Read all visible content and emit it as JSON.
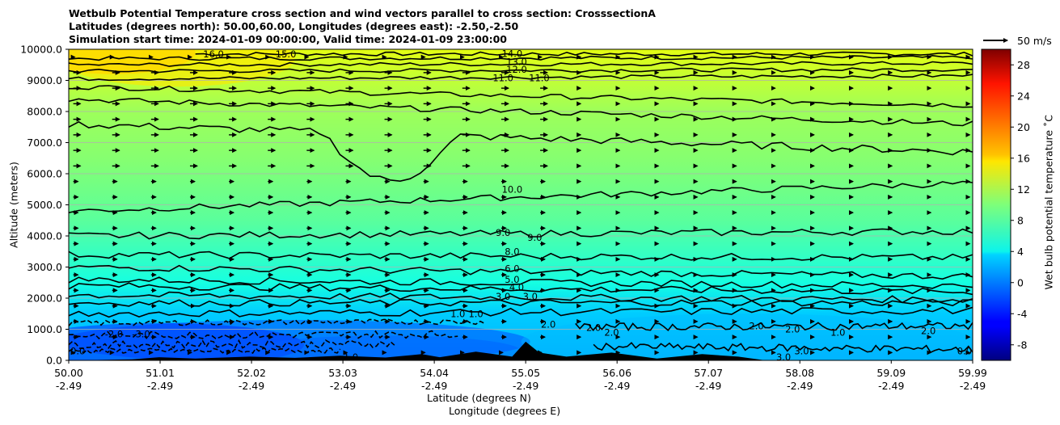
{
  "chart_data": {
    "type": "heatmap",
    "title_lines": [
      "Wetbulb Potential Temperature cross section and wind vectors parallel to cross section: CrosssectionA",
      "Latitudes (degrees north): 50.00,60.00, Longitudes (degrees east): -2.50,-2.50",
      "Simulation start time: 2024-01-09 00:00:00, Valid time: 2024-01-09 23:00:00"
    ],
    "xlabel_lat": "Latitude (degrees N)",
    "xlabel_lon": "Longitude (degrees E)",
    "ylabel": "Altitude (meters)",
    "colorbar_label": "Wet bulb potential temperature $^\\circ$C",
    "colorbar_label_display": "Wet bulb potential temperature ˚C",
    "vector_key_label": "50 m/s",
    "x_ticks_lat": [
      "50.00",
      "51.01",
      "52.02",
      "53.03",
      "54.04",
      "55.05",
      "56.06",
      "57.07",
      "58.08",
      "59.09",
      "59.99"
    ],
    "x_ticks_lon": [
      "-2.49",
      "-2.49",
      "-2.49",
      "-2.49",
      "-2.49",
      "-2.49",
      "-2.49",
      "-2.49",
      "-2.49",
      "-2.49",
      "-2.49"
    ],
    "x_tick_values": [
      50.0,
      51.01,
      52.02,
      53.03,
      54.04,
      55.05,
      56.06,
      57.07,
      58.08,
      59.09,
      59.99
    ],
    "xlim": [
      50.0,
      59.99
    ],
    "y_ticks": [
      "0.0",
      "1000.0",
      "2000.0",
      "3000.0",
      "4000.0",
      "5000.0",
      "6000.0",
      "7000.0",
      "8000.0",
      "9000.0",
      "10000.0"
    ],
    "ylim": [
      0,
      10000
    ],
    "grid": "horizontal",
    "colorbar_ticks": [
      "-8",
      "-4",
      "0",
      "4",
      "8",
      "12",
      "16",
      "20",
      "24",
      "28"
    ],
    "colorbar_range": [
      -10,
      30
    ],
    "colormap": "jet",
    "contour_levels": [
      -3,
      -2,
      -1,
      1,
      2,
      3,
      4,
      5,
      6,
      8,
      9,
      10,
      11,
      12,
      13,
      14,
      15,
      16
    ],
    "contour_labels": [
      {
        "text": "16.0",
        "x": 51.6,
        "y": 9850
      },
      {
        "text": "15.0",
        "x": 52.4,
        "y": 9850
      },
      {
        "text": "14.0",
        "x": 54.9,
        "y": 9860
      },
      {
        "text": "13.0",
        "x": 54.95,
        "y": 9600
      },
      {
        "text": "12.0",
        "x": 54.95,
        "y": 9350
      },
      {
        "text": "11.0",
        "x": 54.8,
        "y": 9080
      },
      {
        "text": "11.0",
        "x": 55.2,
        "y": 9080
      },
      {
        "text": "10.0",
        "x": 54.9,
        "y": 5500
      },
      {
        "text": "9.0",
        "x": 54.8,
        "y": 4100
      },
      {
        "text": "9.0",
        "x": 55.15,
        "y": 3950
      },
      {
        "text": "8.0",
        "x": 54.9,
        "y": 3500
      },
      {
        "text": "6.0",
        "x": 54.9,
        "y": 2950
      },
      {
        "text": "5.0",
        "x": 54.9,
        "y": 2600
      },
      {
        "text": "4.0",
        "x": 54.95,
        "y": 2350
      },
      {
        "text": "3.0",
        "x": 54.8,
        "y": 2050
      },
      {
        "text": "3.0",
        "x": 55.1,
        "y": 2050
      },
      {
        "text": "1.0",
        "x": 54.3,
        "y": 1500
      },
      {
        "text": "1.0",
        "x": 54.5,
        "y": 1500
      },
      {
        "text": "-3.0",
        "x": 50.8,
        "y": 850
      },
      {
        "text": "-2.0",
        "x": 50.5,
        "y": 850
      },
      {
        "text": "2.0",
        "x": 55.3,
        "y": 1150
      },
      {
        "text": "2.0",
        "x": 55.8,
        "y": 1050
      },
      {
        "text": "2.0",
        "x": 56.0,
        "y": 900
      },
      {
        "text": "2.0",
        "x": 57.6,
        "y": 1100
      },
      {
        "text": "2.0",
        "x": 58.0,
        "y": 1000
      },
      {
        "text": "1.0",
        "x": 58.5,
        "y": 900
      },
      {
        "text": "2.0",
        "x": 59.5,
        "y": 950
      },
      {
        "text": "3.0",
        "x": 57.9,
        "y": 100
      },
      {
        "text": "3.0",
        "x": 58.1,
        "y": 300
      },
      {
        "text": "-1.0",
        "x": 53.1,
        "y": 100
      },
      {
        "text": "0.0",
        "x": 50.1,
        "y": 300
      },
      {
        "text": "0.0",
        "x": 59.9,
        "y": 300
      }
    ]
  }
}
